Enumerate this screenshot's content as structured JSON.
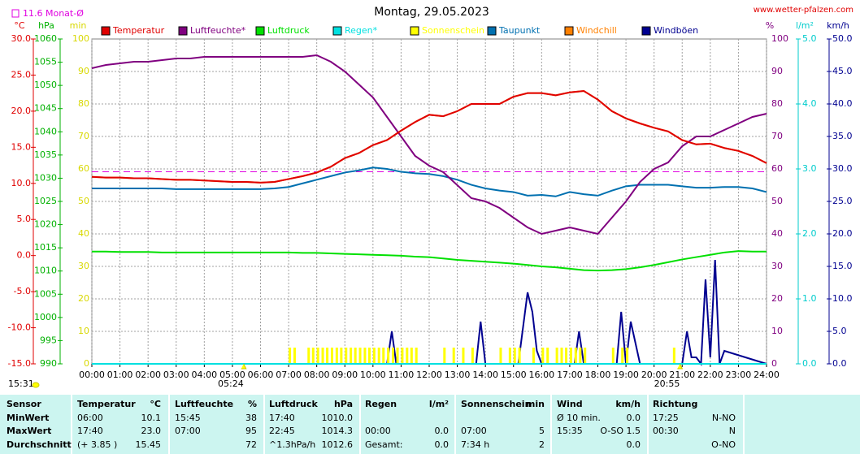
{
  "chart_data": {
    "type": "line",
    "title": "Montag, 29.05.2023",
    "source": "www.wetter-pfalzen.com",
    "monthly_mean": {
      "value": 11.6,
      "label": "11.6 Monat-Ø",
      "color": "#e000e0"
    },
    "grid": true,
    "xlim": [
      0,
      24
    ],
    "xticks": [
      {
        "value": 0,
        "label": "00:00"
      },
      {
        "value": 1,
        "label": "01:00"
      },
      {
        "value": 2,
        "label": "02:00"
      },
      {
        "value": 3,
        "label": "03:00"
      },
      {
        "value": 4,
        "label": "04:00"
      },
      {
        "value": 5,
        "label": "05:00"
      },
      {
        "value": 6,
        "label": "06:00"
      },
      {
        "value": 7,
        "label": "07:00"
      },
      {
        "value": 8,
        "label": "08:00"
      },
      {
        "value": 9,
        "label": "09:00"
      },
      {
        "value": 10,
        "label": "10:00"
      },
      {
        "value": 11,
        "label": "11:00"
      },
      {
        "value": 12,
        "label": "12:00"
      },
      {
        "value": 13,
        "label": "13:00"
      },
      {
        "value": 14,
        "label": "14:00"
      },
      {
        "value": 15,
        "label": "15:00"
      },
      {
        "value": 16,
        "label": "16:00"
      },
      {
        "value": 17,
        "label": "17:00"
      },
      {
        "value": 18,
        "label": "18:00"
      },
      {
        "value": 19,
        "label": "19:00"
      },
      {
        "value": 20,
        "label": "20:00"
      },
      {
        "value": 21,
        "label": "21:00"
      },
      {
        "value": 22,
        "label": "22:00"
      },
      {
        "value": 23,
        "label": "23:00"
      },
      {
        "value": 24,
        "label": "24:00"
      }
    ],
    "yaxes": [
      {
        "label": "°C",
        "color": "#e00000",
        "ylim": [
          -15,
          30
        ],
        "yticks": [
          {
            "value": 30,
            "label": "30.0"
          },
          {
            "value": 25,
            "label": "25.0"
          },
          {
            "value": 20,
            "label": "20.0"
          },
          {
            "value": 15,
            "label": "15.0"
          },
          {
            "value": 10,
            "label": "10.0"
          },
          {
            "value": 5,
            "label": "5.0"
          },
          {
            "value": 0,
            "label": "0.0"
          },
          {
            "value": -5,
            "label": "-5.0"
          },
          {
            "value": -10,
            "label": "-10.0"
          },
          {
            "value": -15,
            "label": "-15.0"
          }
        ]
      },
      {
        "label": "hPa",
        "color": "#00b000",
        "ylim": [
          990,
          1060
        ],
        "yticks": [
          1060,
          1055,
          1050,
          1045,
          1040,
          1035,
          1030,
          1025,
          1020,
          1015,
          1010,
          1005,
          1000,
          995,
          990
        ]
      },
      {
        "label": "min",
        "color": "#d8d800",
        "ylim": [
          0,
          100
        ],
        "yticks": [
          100,
          90,
          80,
          70,
          60,
          50,
          40,
          30,
          20,
          10,
          0
        ]
      },
      {
        "label": "%",
        "color": "#800080",
        "ylim": [
          0,
          100
        ],
        "yticks": [
          100,
          90,
          80,
          70,
          60,
          50,
          40,
          30,
          20,
          10,
          0
        ]
      },
      {
        "label": "l/m²",
        "color": "#00cccc",
        "ylim": [
          0,
          5
        ],
        "yticks": [
          {
            "value": 5,
            "label": "5.0"
          },
          {
            "value": 4,
            "label": "4.0"
          },
          {
            "value": 3,
            "label": "3.0"
          },
          {
            "value": 2,
            "label": "2.0"
          },
          {
            "value": 1,
            "label": "1.0"
          },
          {
            "value": 0,
            "label": "0.0"
          }
        ]
      },
      {
        "label": "km/h",
        "color": "#000090",
        "ylim": [
          0,
          50
        ],
        "yticks": [
          {
            "value": 50,
            "label": "50.0"
          },
          {
            "value": 45,
            "label": "45.0"
          },
          {
            "value": 40,
            "label": "40.0"
          },
          {
            "value": 35,
            "label": "35.0"
          },
          {
            "value": 30,
            "label": "30.0"
          },
          {
            "value": 25,
            "label": "25.0"
          },
          {
            "value": 20,
            "label": "20.0"
          },
          {
            "value": 15,
            "label": "15.0"
          },
          {
            "value": 10,
            "label": "10.0"
          },
          {
            "value": 5,
            "label": "5.0"
          },
          {
            "value": 0,
            "label": "0.0"
          }
        ]
      }
    ],
    "x": [
      0,
      0.5,
      1,
      1.5,
      2,
      2.5,
      3,
      3.5,
      4,
      4.5,
      5,
      5.5,
      6,
      6.5,
      7,
      7.5,
      8,
      8.5,
      9,
      9.5,
      10,
      10.5,
      11,
      11.5,
      12,
      12.5,
      13,
      13.5,
      14,
      14.5,
      15,
      15.5,
      16,
      16.5,
      17,
      17.5,
      18,
      18.5,
      19,
      19.5,
      20,
      20.5,
      21,
      21.5,
      22,
      22.5,
      23,
      23.5,
      24
    ],
    "series": [
      {
        "name": "Temperatur",
        "color": "#e00000",
        "axis": 0,
        "style": "line",
        "values": [
          10.9,
          10.8,
          10.8,
          10.7,
          10.7,
          10.6,
          10.5,
          10.5,
          10.4,
          10.3,
          10.2,
          10.2,
          10.1,
          10.2,
          10.6,
          11.0,
          11.5,
          12.3,
          13.5,
          14.2,
          15.3,
          16.0,
          17.3,
          18.5,
          19.5,
          19.3,
          20.0,
          21.0,
          21.0,
          21.0,
          22.0,
          22.5,
          22.5,
          22.2,
          22.6,
          22.8,
          21.6,
          20.0,
          19.0,
          18.3,
          17.7,
          17.2,
          16.0,
          15.4,
          15.5,
          14.9,
          14.5,
          13.8,
          12.8
        ]
      },
      {
        "name": "Luftfeuchte*",
        "color": "#800080",
        "axis": 3,
        "style": "line",
        "values": [
          91,
          92,
          92.5,
          93,
          93,
          93.5,
          94,
          94,
          94.5,
          94.5,
          94.5,
          94.5,
          94.5,
          94.5,
          94.5,
          94.5,
          95,
          93,
          90,
          86,
          82,
          76,
          70,
          64,
          61,
          59,
          55,
          51,
          50,
          48,
          45,
          42,
          40,
          41,
          42,
          41,
          40,
          45,
          50,
          56,
          60,
          62,
          67,
          70,
          70,
          72,
          74,
          76,
          77
        ]
      },
      {
        "name": "Luftdruck",
        "color": "#00e000",
        "axis": 1,
        "style": "line",
        "values": [
          1014.2,
          1014.2,
          1014.1,
          1014.1,
          1014.1,
          1014.0,
          1014.0,
          1014.0,
          1014.0,
          1014.0,
          1014.0,
          1014.0,
          1014.0,
          1014.0,
          1014.0,
          1013.9,
          1013.9,
          1013.8,
          1013.7,
          1013.6,
          1013.5,
          1013.4,
          1013.3,
          1013.1,
          1013.0,
          1012.7,
          1012.4,
          1012.2,
          1012.0,
          1011.8,
          1011.6,
          1011.3,
          1011.0,
          1010.8,
          1010.5,
          1010.2,
          1010.1,
          1010.2,
          1010.4,
          1010.8,
          1011.3,
          1011.9,
          1012.5,
          1013.0,
          1013.5,
          1014.0,
          1014.3,
          1014.2,
          1014.2
        ]
      },
      {
        "name": "Regen*",
        "color": "#00e0e0",
        "axis": 4,
        "style": "line",
        "x": [
          0,
          24
        ],
        "values": [
          0.0,
          0.0
        ]
      },
      {
        "name": "Sonnenschein",
        "color": "#ffff00",
        "axis": 2,
        "style": "bar",
        "x": [
          7.0,
          7.17,
          7.67,
          7.83,
          8.0,
          8.17,
          8.33,
          8.5,
          8.67,
          8.83,
          9.0,
          9.17,
          9.33,
          9.5,
          9.67,
          9.83,
          10.0,
          10.17,
          10.33,
          10.5,
          10.67,
          10.83,
          11.0,
          11.17,
          11.33,
          11.5,
          12.5,
          12.83,
          13.17,
          13.5,
          14.5,
          14.83,
          15.0,
          15.17,
          15.67,
          16.0,
          16.17,
          16.5,
          16.67,
          16.83,
          17.0,
          17.17,
          17.33,
          17.5,
          18.5,
          18.83,
          19.0,
          20.67
        ],
        "values": [
          5,
          5,
          5,
          5,
          5,
          5,
          5,
          5,
          5,
          5,
          5,
          5,
          5,
          5,
          5,
          5,
          5,
          5,
          5,
          5,
          5,
          5,
          5,
          5,
          5,
          5,
          5,
          5,
          5,
          5,
          5,
          5,
          5,
          5,
          5,
          5,
          5,
          5,
          5,
          5,
          5,
          5,
          5,
          5,
          5,
          5,
          5,
          5
        ]
      },
      {
        "name": "Taupunkt",
        "color": "#0070b0",
        "axis": 0,
        "style": "line",
        "values": [
          9.3,
          9.3,
          9.3,
          9.3,
          9.3,
          9.3,
          9.2,
          9.2,
          9.2,
          9.2,
          9.2,
          9.2,
          9.2,
          9.3,
          9.5,
          10.0,
          10.5,
          11.0,
          11.5,
          11.8,
          12.2,
          12.0,
          11.6,
          11.4,
          11.3,
          11.0,
          10.5,
          9.8,
          9.3,
          9.0,
          8.8,
          8.3,
          8.4,
          8.2,
          8.8,
          8.5,
          8.3,
          9.0,
          9.6,
          9.8,
          9.8,
          9.8,
          9.6,
          9.4,
          9.4,
          9.5,
          9.5,
          9.3,
          8.8
        ]
      },
      {
        "name": "Windchill",
        "color": "#ff8000",
        "axis": 0,
        "style": "line",
        "values": [
          10.9,
          10.8,
          10.8,
          10.7,
          10.7,
          10.6,
          10.5,
          10.5,
          10.4,
          10.3,
          10.2,
          10.2,
          10.1,
          10.2,
          10.6,
          11.0,
          11.5,
          12.3,
          13.5,
          14.2,
          15.3,
          16.0,
          17.3,
          18.5,
          19.5,
          19.3,
          20.0,
          21.0,
          21.0,
          21.0,
          22.0,
          22.5,
          22.5,
          22.2,
          22.6,
          22.8,
          21.6,
          20.0,
          19.0,
          18.3,
          17.7,
          17.2,
          16.0,
          15.4,
          15.5,
          14.9,
          14.5,
          13.8,
          12.8
        ]
      },
      {
        "name": "Windböen",
        "color": "#000090",
        "axis": 5,
        "style": "line",
        "x": [
          0,
          10.5,
          10.67,
          10.83,
          13.67,
          13.83,
          14.0,
          15.17,
          15.5,
          15.67,
          15.83,
          16.0,
          17.17,
          17.33,
          17.5,
          18.67,
          18.83,
          19.0,
          19.17,
          19.5,
          20.83,
          21.0,
          21.17,
          21.33,
          21.5,
          21.67,
          21.83,
          22.0,
          22.17,
          22.33,
          22.5,
          24
        ],
        "values": [
          0,
          0,
          5,
          0,
          0,
          6.5,
          0,
          0,
          11,
          8,
          2,
          0,
          0,
          5,
          0,
          0,
          8,
          0,
          6.5,
          0,
          0,
          0,
          5,
          1,
          1,
          0,
          13,
          1,
          16,
          0,
          2,
          0
        ]
      }
    ],
    "sunrise": {
      "value": 5.4,
      "label": "05:24"
    },
    "sunset": {
      "value": 20.917,
      "label": "20:55"
    },
    "day_length": "15:31"
  },
  "stats": {
    "header": [
      [
        "Sensor"
      ],
      [
        "Temperatur",
        "°C"
      ],
      [
        "Luftfeuchte",
        "%"
      ],
      [
        "Luftdruck",
        "hPa"
      ],
      [
        "Regen",
        "l/m²"
      ],
      [
        "Sonnenschein",
        "min"
      ],
      [
        "Wind",
        "km/h"
      ],
      [
        "Richtung"
      ]
    ],
    "rows": [
      [
        [
          "MinWert"
        ],
        [
          "06:00",
          "10.1"
        ],
        [
          "15:45",
          "38"
        ],
        [
          "17:40",
          "1010.0"
        ],
        [],
        [],
        [
          "Ø 10 min.",
          "0.0"
        ],
        [
          "17:25",
          "N-NO"
        ]
      ],
      [
        [
          "MaxWert"
        ],
        [
          "17:40",
          "23.0"
        ],
        [
          "07:00",
          "95"
        ],
        [
          "22:45",
          "1014.3"
        ],
        [
          "00:00",
          "0.0"
        ],
        [
          "07:00",
          "5"
        ],
        [
          "15:35",
          "O-SO 1.5"
        ],
        [
          "00:30",
          "N"
        ]
      ],
      [
        [
          "Durchschnitt"
        ],
        [
          "(+ 3.85 )",
          "15.45"
        ],
        [
          "72"
        ],
        [
          "^1.3hPa/h",
          "1012.6"
        ],
        [
          "Gesamt:",
          "0.0"
        ],
        [
          "7:34 h",
          "2"
        ],
        [
          "0.0"
        ],
        [
          "O-NO"
        ]
      ]
    ]
  }
}
